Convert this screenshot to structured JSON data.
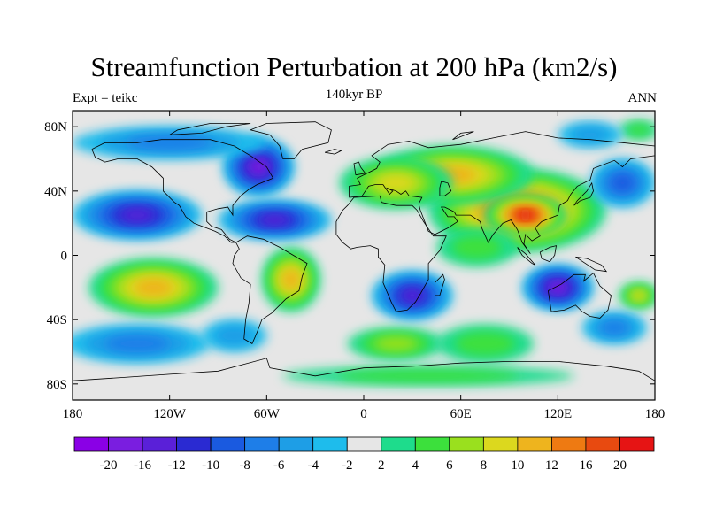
{
  "header": {
    "title": "Streamfunction Perturbation at 200 hPa (km2/s)",
    "left_label": "Expt = teikc",
    "center_label": "140kyr BP",
    "right_label": "ANN"
  },
  "map": {
    "projection": "cylindrical-equidistant",
    "lon_range": [
      -180,
      180
    ],
    "lat_range": [
      -90,
      90
    ],
    "lat_ticks": [
      {
        "value": 80,
        "label": "80N"
      },
      {
        "value": 40,
        "label": "40N"
      },
      {
        "value": 0,
        "label": "0"
      },
      {
        "value": -40,
        "label": "40S"
      },
      {
        "value": -80,
        "label": "80S"
      }
    ],
    "lon_ticks": [
      {
        "value": -180,
        "label": "180"
      },
      {
        "value": -120,
        "label": "120W"
      },
      {
        "value": -60,
        "label": "60W"
      },
      {
        "value": 0,
        "label": "0"
      },
      {
        "value": 60,
        "label": "60E"
      },
      {
        "value": 120,
        "label": "120E"
      },
      {
        "value": 180,
        "label": "180"
      }
    ],
    "neutral_color": "#e6e6e6",
    "coastline_color": "#000000"
  },
  "colorbar": {
    "levels": [
      "-20",
      "-16",
      "-12",
      "-10",
      "-8",
      "-6",
      "-4",
      "-2",
      "2",
      "4",
      "6",
      "8",
      "10",
      "12",
      "16",
      "20"
    ],
    "colors": [
      "#8a00e6",
      "#7a1ee0",
      "#5a20d8",
      "#2a2ad2",
      "#1a5ae0",
      "#1e7ee8",
      "#1e9ee6",
      "#1ebcec",
      "#e6e6e6",
      "#1edc8c",
      "#3ce03c",
      "#9ae01e",
      "#dcd81e",
      "#eeb41e",
      "#ee7a12",
      "#e84a10",
      "#e61414"
    ]
  },
  "features": [
    {
      "name": "pos-high-eurasia",
      "lon": 95,
      "lat": 28,
      "rx": 55,
      "ry": 26,
      "level": 16
    },
    {
      "name": "pos-eurasia-north",
      "lon": 55,
      "lat": 50,
      "rx": 50,
      "ry": 18,
      "level": 10
    },
    {
      "name": "pos-europe",
      "lon": 20,
      "lat": 45,
      "rx": 35,
      "ry": 16,
      "level": 8
    },
    {
      "name": "pos-tibet-core",
      "lon": 100,
      "lat": 25,
      "rx": 25,
      "ry": 12,
      "level": 20
    },
    {
      "name": "pos-south-pacific",
      "lon": -130,
      "lat": -20,
      "rx": 40,
      "ry": 18,
      "level": 10
    },
    {
      "name": "pos-south-america",
      "lon": -45,
      "lat": -15,
      "rx": 18,
      "ry": 20,
      "level": 10
    },
    {
      "name": "pos-south-atlantic",
      "lon": 20,
      "lat": -55,
      "rx": 30,
      "ry": 10,
      "level": 6
    },
    {
      "name": "pos-south-indian",
      "lon": 75,
      "lat": -55,
      "rx": 30,
      "ry": 12,
      "level": 4
    },
    {
      "name": "pos-antarctic",
      "lon": 40,
      "lat": -75,
      "rx": 90,
      "ry": 6,
      "level": 4
    },
    {
      "name": "pos-india",
      "lon": 70,
      "lat": 5,
      "rx": 25,
      "ry": 12,
      "level": 4
    },
    {
      "name": "pos-far-ne",
      "lon": 170,
      "lat": 78,
      "rx": 12,
      "ry": 6,
      "level": 4
    },
    {
      "name": "pos-far-se",
      "lon": 170,
      "lat": -25,
      "rx": 12,
      "ry": 8,
      "level": 8
    },
    {
      "name": "neg-pacific-n",
      "lon": -140,
      "lat": 25,
      "rx": 40,
      "ry": 15,
      "level": -12
    },
    {
      "name": "neg-north-america",
      "lon": -65,
      "lat": 55,
      "rx": 22,
      "ry": 18,
      "level": -16
    },
    {
      "name": "neg-atlantic",
      "lon": -55,
      "lat": 22,
      "rx": 35,
      "ry": 12,
      "level": -12
    },
    {
      "name": "neg-arctic",
      "lon": -120,
      "lat": 70,
      "rx": 60,
      "ry": 10,
      "level": -6
    },
    {
      "name": "neg-africa-south",
      "lon": 30,
      "lat": -25,
      "rx": 25,
      "ry": 15,
      "level": -12
    },
    {
      "name": "neg-australia",
      "lon": 120,
      "lat": -20,
      "rx": 22,
      "ry": 14,
      "level": -16
    },
    {
      "name": "neg-west-pacific",
      "lon": 160,
      "lat": 45,
      "rx": 20,
      "ry": 15,
      "level": -8
    },
    {
      "name": "neg-south-pacific",
      "lon": -140,
      "lat": -55,
      "rx": 45,
      "ry": 12,
      "level": -6
    },
    {
      "name": "neg-pacific-se",
      "lon": -80,
      "lat": -50,
      "rx": 20,
      "ry": 10,
      "level": -4
    },
    {
      "name": "neg-siberia",
      "lon": 140,
      "lat": 75,
      "rx": 20,
      "ry": 8,
      "level": -4
    },
    {
      "name": "neg-indian",
      "lon": 155,
      "lat": -45,
      "rx": 20,
      "ry": 10,
      "level": -6
    }
  ]
}
